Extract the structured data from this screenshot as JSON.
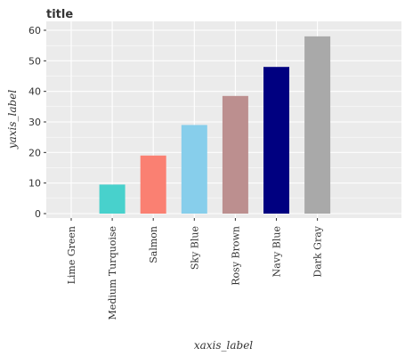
{
  "chart_data": {
    "type": "bar",
    "title": "title",
    "xlabel": "xaxis_label",
    "ylabel": "yaxis_label",
    "categories": [
      "Lime Green",
      "Medium Turquoise",
      "Salmon",
      "Sky Blue",
      "Rosy Brown",
      "Navy Blue",
      "Dark Gray"
    ],
    "values": [
      0,
      9.5,
      19,
      29,
      38.5,
      48,
      58
    ],
    "colors": [
      "#32cd32",
      "#48d1cc",
      "#fa8072",
      "#87ceeb",
      "#bc8f8f",
      "#000080",
      "#a9a9a9"
    ],
    "ylim": [
      0,
      60
    ],
    "yticks": [
      0,
      10,
      20,
      30,
      40,
      50,
      60
    ],
    "grid": true,
    "background": "#ebebeb"
  }
}
